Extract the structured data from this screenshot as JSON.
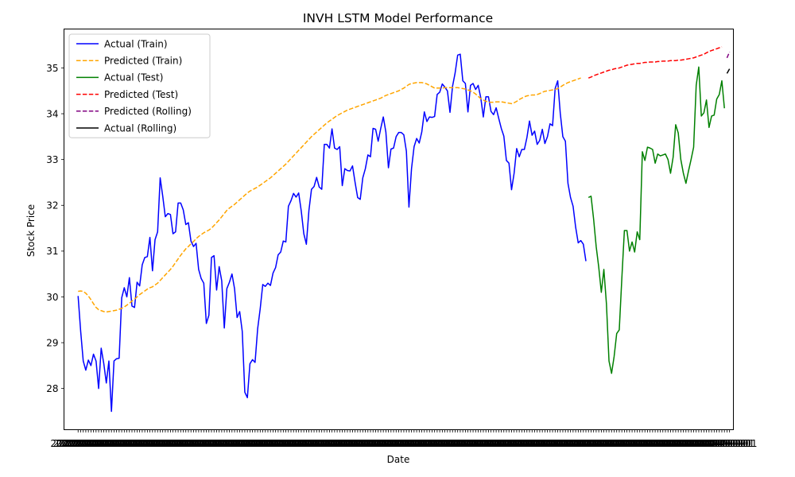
{
  "chart_data": {
    "type": "line",
    "title": "INVH LSTM Model Performance",
    "xlabel": "Date",
    "ylabel": "Stock Price",
    "ylim": [
      27.1,
      35.85
    ],
    "xlim": [
      -5.5,
      255.5
    ],
    "yticks": [
      28,
      29,
      30,
      31,
      32,
      33,
      34,
      35
    ],
    "x_tick_label_text": "2022-01-01",
    "legend_position": "upper-left",
    "grid": false,
    "series": [
      {
        "name": "Actual (Train)",
        "color": "#0000ff",
        "style": "solid",
        "x_start": 0,
        "values": [
          30.02,
          29.25,
          28.6,
          28.4,
          28.62,
          28.5,
          28.75,
          28.6,
          28.0,
          28.88,
          28.55,
          28.12,
          28.6,
          27.5,
          28.6,
          28.65,
          28.66,
          29.98,
          30.2,
          30.0,
          30.42,
          29.8,
          29.77,
          30.32,
          30.24,
          30.7,
          30.86,
          30.88,
          31.3,
          30.57,
          31.25,
          31.42,
          32.6,
          32.2,
          31.75,
          31.82,
          31.8,
          31.38,
          31.42,
          32.05,
          32.05,
          31.9,
          31.58,
          31.62,
          31.22,
          31.1,
          31.17,
          30.6,
          30.4,
          30.3,
          29.42,
          29.6,
          30.86,
          30.9,
          30.15,
          30.66,
          30.35,
          29.32,
          30.18,
          30.32,
          30.5,
          30.18,
          29.55,
          29.68,
          29.25,
          27.92,
          27.8,
          28.54,
          28.63,
          28.57,
          29.3,
          29.74,
          30.27,
          30.23,
          30.3,
          30.25,
          30.52,
          30.64,
          30.92,
          30.98,
          31.22,
          31.2,
          31.98,
          32.1,
          32.26,
          32.18,
          32.27,
          31.88,
          31.38,
          31.15,
          31.89,
          32.35,
          32.41,
          32.61,
          32.4,
          32.35,
          33.33,
          33.33,
          33.25,
          33.67,
          33.25,
          33.22,
          33.28,
          32.43,
          32.8,
          32.76,
          32.75,
          32.86,
          32.5,
          32.17,
          32.13,
          32.6,
          32.8,
          33.1,
          33.06,
          33.68,
          33.66,
          33.4,
          33.68,
          33.93,
          33.6,
          32.82,
          33.23,
          33.25,
          33.5,
          33.59,
          33.59,
          33.54,
          33.18,
          31.96,
          32.8,
          33.28,
          33.46,
          33.36,
          33.6,
          34.04,
          33.83,
          33.93,
          33.92,
          33.94,
          34.42,
          34.47,
          34.65,
          34.58,
          34.5,
          34.03,
          34.6,
          34.89,
          35.28,
          35.3,
          34.72,
          34.66,
          34.04,
          34.62,
          34.66,
          34.53,
          34.62,
          34.35,
          33.93,
          34.37,
          34.37,
          34.05,
          33.98,
          34.13,
          33.9,
          33.68,
          33.51,
          32.98,
          32.92,
          32.34,
          32.7,
          33.24,
          33.06,
          33.22,
          33.22,
          33.48,
          33.84,
          33.53,
          33.62,
          33.33,
          33.42,
          33.66,
          33.35,
          33.5,
          33.78,
          33.74,
          34.55,
          34.72,
          34.01,
          33.5,
          33.4,
          32.48,
          32.17,
          31.98,
          31.52,
          31.18,
          31.23,
          31.15,
          30.78
        ]
      },
      {
        "name": "Predicted (Train)",
        "color": "#ffa500",
        "style": "dashed",
        "x_start": 0,
        "values": [
          30.12,
          30.13,
          30.12,
          30.08,
          30.02,
          29.94,
          29.85,
          29.77,
          29.72,
          29.7,
          29.68,
          29.67,
          29.68,
          29.69,
          29.7,
          29.71,
          29.73,
          29.75,
          29.78,
          29.82,
          29.86,
          29.91,
          29.95,
          30.0,
          30.05,
          30.09,
          30.13,
          30.17,
          30.2,
          30.22,
          30.26,
          30.3,
          30.36,
          30.42,
          30.48,
          30.54,
          30.6,
          30.67,
          30.75,
          30.83,
          30.91,
          30.98,
          31.05,
          31.1,
          31.16,
          31.21,
          31.27,
          31.32,
          31.36,
          31.4,
          31.43,
          31.46,
          31.5,
          31.56,
          31.62,
          31.68,
          31.75,
          31.82,
          31.89,
          31.94,
          31.98,
          32.02,
          32.07,
          32.12,
          32.17,
          32.22,
          32.27,
          32.31,
          32.34,
          32.37,
          32.4,
          32.44,
          32.48,
          32.52,
          32.56,
          32.6,
          32.65,
          32.7,
          32.75,
          32.8,
          32.85,
          32.9,
          32.96,
          33.02,
          33.08,
          33.14,
          33.2,
          33.26,
          33.32,
          33.38,
          33.44,
          33.5,
          33.55,
          33.6,
          33.65,
          33.7,
          33.75,
          33.8,
          33.84,
          33.88,
          33.92,
          33.96,
          33.99,
          34.02,
          34.05,
          34.08,
          34.1,
          34.12,
          34.14,
          34.16,
          34.18,
          34.2,
          34.22,
          34.24,
          34.26,
          34.28,
          34.3,
          34.32,
          34.34,
          34.37,
          34.4,
          34.42,
          34.44,
          34.46,
          34.48,
          34.5,
          34.53,
          34.56,
          34.6,
          34.64,
          34.66,
          34.67,
          34.68,
          34.68,
          34.68,
          34.67,
          34.65,
          34.62,
          34.59,
          34.56,
          34.56,
          34.56,
          34.56,
          34.57,
          34.57,
          34.57,
          34.57,
          34.57,
          34.57,
          34.56,
          34.55,
          34.54,
          34.52,
          34.5,
          34.47,
          34.43,
          34.38,
          34.33,
          34.3,
          34.27,
          34.25,
          34.25,
          34.25,
          34.26,
          34.26,
          34.26,
          34.25,
          34.24,
          34.23,
          34.22,
          34.24,
          34.27,
          34.31,
          34.34,
          34.37,
          34.39,
          34.4,
          34.41,
          34.41,
          34.42,
          34.44,
          34.47,
          34.49,
          34.5,
          34.51,
          34.52,
          34.53,
          34.55,
          34.58,
          34.62,
          34.65,
          34.68,
          34.7,
          34.72,
          34.74,
          34.76,
          34.78
        ]
      },
      {
        "name": "Actual (Test)",
        "color": "#008000",
        "style": "solid",
        "x_start": 199,
        "values": [
          32.17,
          32.2,
          31.7,
          31.1,
          30.65,
          30.1,
          30.6,
          29.85,
          28.6,
          28.33,
          28.7,
          29.2,
          29.28,
          30.4,
          31.45,
          31.45,
          31.0,
          31.2,
          30.98,
          31.42,
          31.25,
          33.17,
          32.98,
          33.27,
          33.25,
          33.22,
          32.92,
          33.12,
          33.08,
          33.1,
          33.12,
          33.0,
          32.7,
          33.05,
          33.76,
          33.58,
          33.0,
          32.7,
          32.48,
          32.75,
          33.0,
          33.27,
          34.62,
          35.02,
          33.95,
          34.02,
          34.3,
          33.7,
          33.95,
          33.97,
          34.32,
          34.42,
          34.72,
          34.12
        ]
      },
      {
        "name": "Predicted (Test)",
        "color": "#ff0000",
        "style": "dashed",
        "x_start": 199,
        "values": [
          34.78,
          34.8,
          34.83,
          34.85,
          34.87,
          34.89,
          34.91,
          34.93,
          34.95,
          34.96,
          34.98,
          34.99,
          35.0,
          35.02,
          35.04,
          35.06,
          35.07,
          35.08,
          35.09,
          35.1,
          35.1,
          35.11,
          35.12,
          35.12,
          35.13,
          35.13,
          35.13,
          35.14,
          35.14,
          35.15,
          35.15,
          35.15,
          35.16,
          35.16,
          35.16,
          35.17,
          35.17,
          35.18,
          35.19,
          35.2,
          35.21,
          35.22,
          35.24,
          35.26,
          35.28,
          35.3,
          35.33,
          35.36,
          35.38,
          35.4,
          35.42,
          35.44,
          35.46
        ]
      },
      {
        "name": "Predicted (Rolling)",
        "color": "#800080",
        "style": "dashed",
        "x_start": 253,
        "values": [
          35.22,
          35.35
        ]
      },
      {
        "name": "Actual (Rolling)",
        "color": "#000000",
        "style": "solid",
        "x_start": 253,
        "values": [
          34.88,
          34.98
        ]
      }
    ]
  }
}
